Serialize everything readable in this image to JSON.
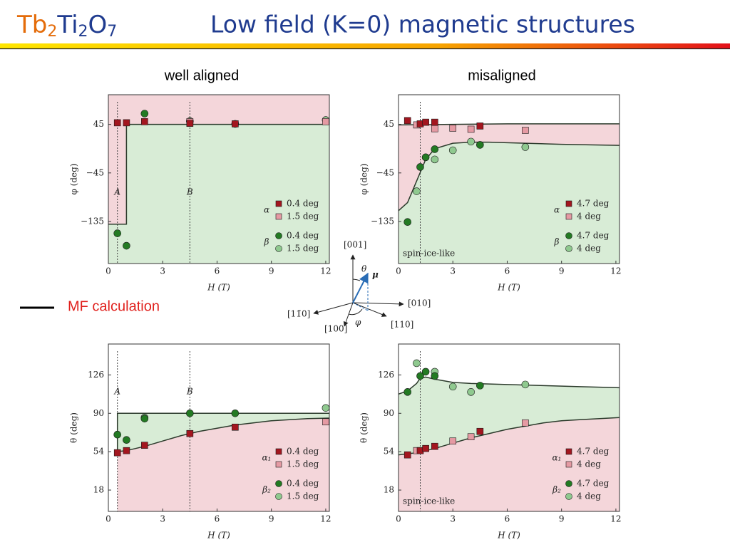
{
  "title": {
    "formula": [
      "Tb",
      "2",
      "Ti",
      "2",
      "O",
      "7"
    ],
    "text": "Low field (K=0) magnetic  structures"
  },
  "columns": [
    "well aligned",
    "misaligned"
  ],
  "legend": "MF calculation",
  "diagram": {
    "labels": [
      "[001]",
      "θ",
      "μ",
      "[010]",
      "[11̄0]",
      "[100]",
      "φ",
      "[110]"
    ]
  },
  "chart_data": [
    {
      "type": "scatter",
      "xlabel": "H (T)",
      "ylabel": "φ (deg)",
      "xlim": [
        0,
        12.2
      ],
      "xticks": [
        0,
        3,
        6,
        9,
        12
      ],
      "ylim": [
        -213,
        100
      ],
      "yticks": [
        {
          "value": -135,
          "label": "−135"
        },
        {
          "value": -45,
          "label": "−45"
        },
        45
      ],
      "guides": [
        {
          "x": 0.5,
          "label": "A"
        },
        {
          "x": 4.5,
          "label": "B"
        }
      ],
      "legend_groups": [
        "α",
        "β"
      ],
      "series": [
        {
          "name": "0.4 deg",
          "group": 0,
          "color": "#a3161f",
          "marker": "square",
          "x": [
            0.5,
            1,
            2,
            4.5,
            7
          ],
          "values": [
            48,
            48,
            50,
            47,
            46
          ]
        },
        {
          "name": "1.5 deg",
          "group": 0,
          "color": "#e59aa3",
          "marker": "square",
          "x": [
            4.5,
            12
          ],
          "values": [
            50,
            50
          ]
        },
        {
          "name": "0.4 deg",
          "group": 1,
          "color": "#237a23",
          "marker": "circle",
          "x": [
            0.5,
            1,
            2,
            4.5,
            7
          ],
          "values": [
            -157,
            -180,
            65,
            51,
            46
          ]
        },
        {
          "name": "1.5 deg",
          "group": 1,
          "color": "#8fc98f",
          "marker": "circle",
          "x": [
            12
          ],
          "values": [
            53
          ]
        }
      ],
      "curves": [
        {
          "x": [
            0,
            1,
            1,
            12.2
          ],
          "values": [
            -140,
            -140,
            45,
            45
          ]
        }
      ],
      "fills": [
        {
          "from": "top",
          "to": 0,
          "color": "#f4d6da"
        },
        {
          "from": 0,
          "to": "bottom",
          "color": "#d8ecd6"
        }
      ]
    },
    {
      "type": "scatter",
      "xlabel": "H (T)",
      "ylabel": "φ (deg)",
      "xlim": [
        0,
        12.2
      ],
      "xticks": [
        0,
        3,
        6,
        9,
        12
      ],
      "ylim": [
        -213,
        100
      ],
      "yticks": [
        {
          "value": -135,
          "label": "−135"
        },
        {
          "value": -45,
          "label": "−45"
        },
        45
      ],
      "guides": [
        {
          "x": 1.2
        }
      ],
      "note": "spin-ice-like",
      "legend_groups": [
        "α",
        "β"
      ],
      "series": [
        {
          "name": "4.7 deg",
          "group": 0,
          "color": "#a3161f",
          "marker": "square",
          "x": [
            0.5,
            1.2,
            1.5,
            2,
            4.5
          ],
          "values": [
            52,
            46,
            49,
            49,
            42
          ]
        },
        {
          "name": "4 deg",
          "group": 0,
          "color": "#e59aa3",
          "marker": "square",
          "x": [
            1,
            2,
            3,
            4,
            7
          ],
          "values": [
            44,
            37,
            38,
            36,
            34
          ]
        },
        {
          "name": "4.7 deg",
          "group": 1,
          "color": "#237a23",
          "marker": "circle",
          "x": [
            0.5,
            1.2,
            1.5,
            2,
            4.5
          ],
          "values": [
            -136,
            -34,
            -16,
            -1,
            7
          ]
        },
        {
          "name": "4 deg",
          "group": 1,
          "color": "#8fc98f",
          "marker": "circle",
          "x": [
            1,
            2,
            3,
            4,
            7
          ],
          "values": [
            -79,
            -20,
            -3,
            13,
            3
          ]
        }
      ],
      "curves": [
        {
          "x": [
            0,
            3,
            6,
            9,
            12.2
          ],
          "values": [
            44,
            45,
            46,
            46,
            46
          ]
        },
        {
          "x": [
            0,
            0.5,
            1,
            1.5,
            2,
            3,
            4,
            5,
            7,
            9,
            12.2
          ],
          "values": [
            -115,
            -100,
            -60,
            -20,
            0,
            10,
            12,
            12,
            10,
            8,
            6
          ]
        }
      ],
      "fills": [
        {
          "from": 0,
          "to": 1,
          "color": "#f4d6da"
        },
        {
          "from": 1,
          "to": "bottom",
          "color": "#d8ecd6"
        }
      ]
    },
    {
      "type": "scatter",
      "xlabel": "H (T)",
      "ylabel": "θ (deg)",
      "xlim": [
        0,
        12.2
      ],
      "xticks": [
        0,
        3,
        6,
        9,
        12
      ],
      "ylim": [
        -2,
        155
      ],
      "yticks": [
        18,
        54,
        90,
        126
      ],
      "guides": [
        {
          "x": 0.5,
          "label": "A"
        },
        {
          "x": 4.5,
          "label": "B"
        }
      ],
      "legend_groups": [
        "α₁",
        "β₂"
      ],
      "series": [
        {
          "name": "0.4 deg",
          "group": 0,
          "color": "#a3161f",
          "marker": "square",
          "x": [
            0.5,
            1,
            2,
            4.5,
            7
          ],
          "values": [
            53,
            55,
            60,
            71,
            77
          ]
        },
        {
          "name": "1.5 deg",
          "group": 0,
          "color": "#e59aa3",
          "marker": "square",
          "x": [
            12
          ],
          "values": [
            82
          ]
        },
        {
          "name": "0.4 deg",
          "group": 1,
          "color": "#237a23",
          "marker": "circle",
          "x": [
            0.5,
            1,
            2,
            4.5,
            7
          ],
          "values": [
            70,
            65,
            85,
            90,
            90
          ]
        },
        {
          "name": "1.5 deg",
          "group": 1,
          "color": "#8fc98f",
          "marker": "circle",
          "x": [
            2,
            12
          ],
          "values": [
            86,
            95
          ]
        }
      ],
      "curves": [
        {
          "x": [
            0.5,
            0.5,
            12.2
          ],
          "values": [
            55,
            90,
            90
          ]
        },
        {
          "x": [
            0.5,
            1,
            2,
            3,
            4,
            5,
            6,
            7,
            8,
            9,
            10,
            11,
            12.2
          ],
          "values": [
            54,
            55,
            59,
            64,
            69,
            73,
            76,
            79,
            81,
            83,
            84,
            85,
            85.5
          ]
        }
      ],
      "fills": [
        {
          "from": 0,
          "to": 1,
          "color": "#d8ecd6"
        },
        {
          "from": 1,
          "to": "bottom",
          "color": "#f4d6da"
        }
      ]
    },
    {
      "type": "scatter",
      "xlabel": "H (T)",
      "ylabel": "θ (deg)",
      "xlim": [
        0,
        12.2
      ],
      "xticks": [
        0,
        3,
        6,
        9,
        12
      ],
      "ylim": [
        -2,
        155
      ],
      "yticks": [
        18,
        54,
        90,
        126
      ],
      "guides": [
        {
          "x": 1.2
        }
      ],
      "note": "spin-ice-like",
      "legend_groups": [
        "α₁",
        "β₂"
      ],
      "series": [
        {
          "name": "4.7 deg",
          "group": 0,
          "color": "#a3161f",
          "marker": "square",
          "x": [
            0.5,
            1.2,
            1.5,
            2,
            4.5
          ],
          "values": [
            51,
            55,
            57,
            59,
            73
          ]
        },
        {
          "name": "4 deg",
          "group": 0,
          "color": "#e59aa3",
          "marker": "square",
          "x": [
            1,
            3,
            4,
            7
          ],
          "values": [
            55,
            64,
            68,
            81
          ]
        },
        {
          "name": "4.7 deg",
          "group": 1,
          "color": "#237a23",
          "marker": "circle",
          "x": [
            0.5,
            1.2,
            1.5,
            2,
            4.5
          ],
          "values": [
            110,
            125,
            129,
            125,
            116
          ]
        },
        {
          "name": "4 deg",
          "group": 1,
          "color": "#8fc98f",
          "marker": "circle",
          "x": [
            1,
            2,
            3,
            4,
            7
          ],
          "values": [
            137,
            129,
            115,
            110,
            117
          ]
        }
      ],
      "curves": [
        {
          "x": [
            0,
            0.5,
            1,
            1.2,
            1.5,
            2,
            3,
            4,
            6,
            8,
            10,
            12.2
          ],
          "values": [
            108,
            111,
            118,
            123,
            124,
            122,
            119,
            118,
            117,
            116,
            115,
            114
          ]
        },
        {
          "x": [
            0,
            1,
            2,
            3,
            4,
            5,
            6,
            7,
            8,
            9,
            10,
            12.2
          ],
          "values": [
            51,
            53,
            57,
            62,
            67,
            71,
            75,
            78,
            81,
            83,
            84,
            86
          ]
        }
      ],
      "fills": [
        {
          "from": 0,
          "to": 1,
          "color": "#d8ecd6"
        },
        {
          "from": 1,
          "to": "bottom",
          "color": "#f4d6da"
        }
      ]
    }
  ]
}
